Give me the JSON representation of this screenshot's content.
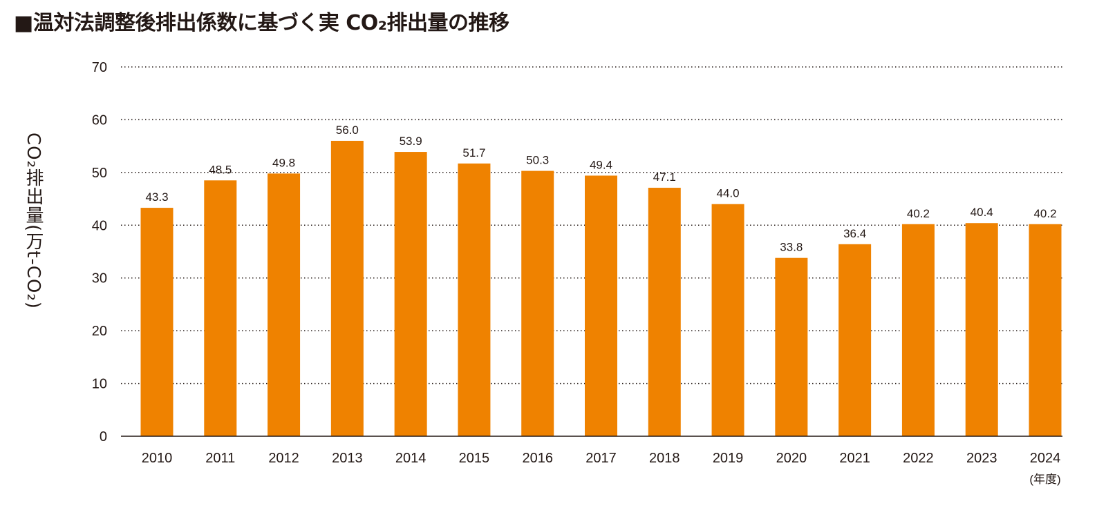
{
  "chart_data": {
    "type": "bar",
    "title": "■温対法調整後排出係数に基づく実 CO₂排出量の推移",
    "ylabel": "CO₂排出量(万t-CO₂)",
    "xlabel": "(年度)",
    "categories": [
      "2010",
      "2011",
      "2012",
      "2013",
      "2014",
      "2015",
      "2016",
      "2017",
      "2018",
      "2019",
      "2020",
      "2021",
      "2022",
      "2023",
      "2024"
    ],
    "values": [
      43.3,
      48.5,
      49.8,
      56.0,
      53.9,
      51.7,
      50.3,
      49.4,
      47.1,
      44.0,
      33.8,
      36.4,
      40.2,
      40.4,
      40.2
    ],
    "data_labels": [
      "43.3",
      "48.5",
      "49.8",
      "56.0",
      "53.9",
      "51.7",
      "50.3",
      "49.4",
      "47.1",
      "44.0",
      "33.8",
      "36.4",
      "40.2",
      "40.4",
      "40.2"
    ],
    "yticks": [
      "0",
      "10",
      "20",
      "30",
      "40",
      "50",
      "60",
      "70"
    ],
    "ylim": [
      0,
      70
    ],
    "grid": "horizontal dotted",
    "bar_color": "#EF8200"
  }
}
